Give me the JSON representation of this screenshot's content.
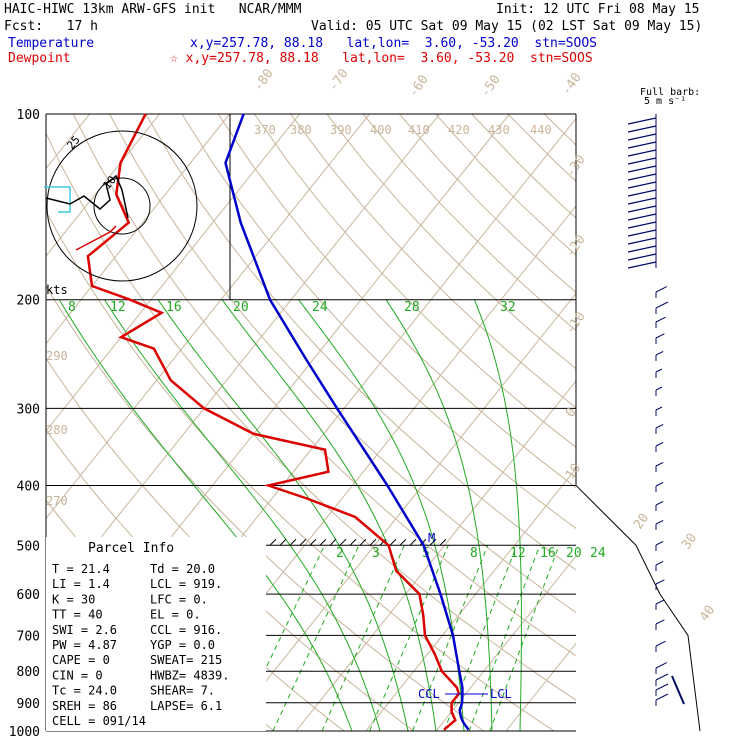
{
  "header": {
    "title": "HAIC-HIWC 13km ARW-GFS init   NCAR/MMM",
    "init": "Init: 12 UTC Fri 08 May 15",
    "fcst": "Fcst:   17 h",
    "valid": "Valid: 05 UTC Sat 09 May 15 (02 LST Sat 09 May 15)",
    "temp_label": "Temperature",
    "temp_info": "x,y=257.78, 88.18   lat,lon=  3.60, -53.20  stn=SOOS",
    "dew_label": "Dewpoint",
    "dew_info": "☆ x,y=257.78, 88.18   lat,lon=  3.60, -53.20  stn=SOOS",
    "temp_color": "#0000cc",
    "dew_color": "#dd0000"
  },
  "barb_legend": {
    "line1": "Full barb:",
    "line2": "5 m s⁻¹"
  },
  "hodograph": {
    "units": "kts",
    "ring_labels": [
      "25",
      "10"
    ]
  },
  "parcel": {
    "title": "Parcel Info",
    "rows": [
      [
        "T    =   21.4",
        "Td  =  20.0"
      ],
      [
        "LI   =    1.4",
        "LCL =  919."
      ],
      [
        "K    =     30",
        "LFC =    0."
      ],
      [
        "TT   =     40",
        "EL  =    0."
      ],
      [
        "SWI  =    2.6",
        "CCL =  916."
      ],
      [
        "PW   =   4.87",
        "YGP =   0.0"
      ],
      [
        "CAPE =      0",
        "SWEAT=  215"
      ],
      [
        "CIN  =      0",
        "HWBZ= 4839."
      ],
      [
        "Tc   =   24.0",
        "SHEAR=    7."
      ],
      [
        "SREH =     86",
        "LAPSE=  6.1"
      ],
      [
        "CELL = 091/14",
        ""
      ]
    ]
  },
  "markers": {
    "ccl_left": "CCL",
    "lcl": "LCL",
    "m": "M"
  },
  "chart_data": {
    "type": "line",
    "title": "",
    "y_axis": {
      "label": "",
      "scale": "log",
      "ticks": [
        100,
        200,
        300,
        400,
        500,
        600,
        700,
        800,
        900,
        1000
      ],
      "ylim": [
        1000,
        100
      ]
    },
    "isotherm_labels": [
      "-80",
      "-70",
      "-60",
      "-50",
      "-40",
      "-30",
      "-20",
      "-10",
      "0",
      "10",
      "20",
      "30",
      "40"
    ],
    "theta_labels": [
      "370",
      "380",
      "390",
      "400",
      "410",
      "420",
      "430",
      "440",
      "290",
      "280",
      "270"
    ],
    "mixing_ratio_labels": [
      "8",
      "12",
      "16",
      "20",
      "24",
      "28",
      "32",
      "2",
      "3",
      "5",
      "8",
      "12",
      "16",
      "20",
      "24"
    ],
    "series": [
      {
        "name": "Temperature",
        "color": "#0000cc",
        "points": [
          [
            995,
            24.5
          ],
          [
            970,
            23
          ],
          [
            950,
            22
          ],
          [
            925,
            21
          ],
          [
            900,
            20.5
          ],
          [
            870,
            19.5
          ],
          [
            850,
            18.8
          ],
          [
            800,
            16.5
          ],
          [
            700,
            11.5
          ],
          [
            600,
            5
          ],
          [
            500,
            -3
          ],
          [
            400,
            -15
          ],
          [
            300,
            -31
          ],
          [
            250,
            -41
          ],
          [
            200,
            -53
          ],
          [
            150,
            -66
          ],
          [
            120,
            -75
          ],
          [
            100,
            -78
          ]
        ]
      },
      {
        "name": "Dewpoint",
        "color": "#dd0000",
        "points": [
          [
            995,
            21
          ],
          [
            960,
            21.5
          ],
          [
            930,
            20
          ],
          [
            900,
            19
          ],
          [
            870,
            19
          ],
          [
            850,
            18
          ],
          [
            800,
            14
          ],
          [
            750,
            11
          ],
          [
            700,
            7.5
          ],
          [
            650,
            5
          ],
          [
            600,
            2
          ],
          [
            550,
            -4
          ],
          [
            500,
            -8
          ],
          [
            450,
            -16
          ],
          [
            420,
            -25
          ],
          [
            400,
            -32
          ],
          [
            380,
            -25
          ],
          [
            350,
            -28
          ],
          [
            330,
            -40
          ],
          [
            300,
            -50
          ],
          [
            270,
            -58
          ],
          [
            240,
            -64
          ],
          [
            230,
            -70
          ],
          [
            210,
            -67
          ],
          [
            200,
            -73
          ],
          [
            190,
            -80
          ],
          [
            170,
            -84
          ],
          [
            150,
            -82
          ],
          [
            135,
            -87
          ],
          [
            120,
            -90
          ],
          [
            100,
            -92
          ]
        ]
      }
    ]
  }
}
